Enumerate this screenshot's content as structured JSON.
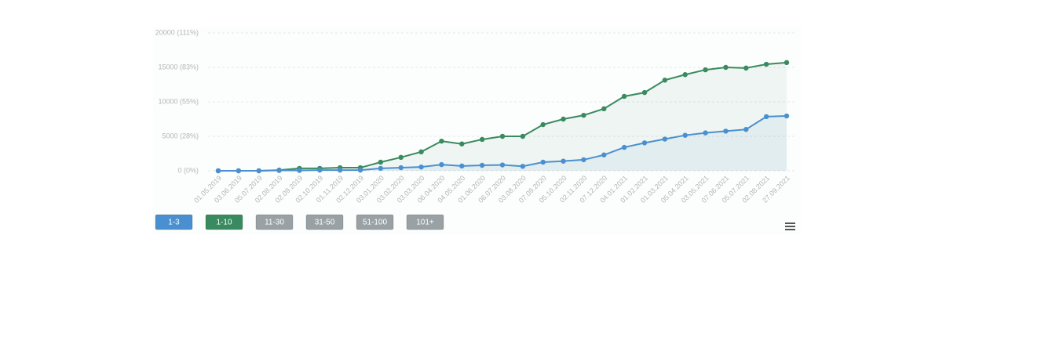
{
  "chart_data": {
    "type": "line",
    "x": [
      "01.05.2019",
      "03.06.2019",
      "05.07.2019",
      "02.08.2019",
      "02.09.2019",
      "02.10.2019",
      "01.11.2019",
      "02.12.2019",
      "03.01.2020",
      "03.02.2020",
      "03.03.2020",
      "06.04.2020",
      "04.05.2020",
      "01.06.2020",
      "06.07.2020",
      "03.08.2020",
      "07.09.2020",
      "05.10.2020",
      "02.11.2020",
      "07.12.2020",
      "04.01.2021",
      "01.02.2021",
      "01.03.2021",
      "05.04.2021",
      "03.05.2021",
      "07.06.2021",
      "05.07.2021",
      "02.08.2021",
      "27.09.2021"
    ],
    "series": [
      {
        "name": "1-3",
        "color": "#4a90d0",
        "values": [
          0,
          0,
          0,
          50,
          50,
          100,
          100,
          100,
          350,
          450,
          550,
          900,
          700,
          800,
          850,
          650,
          1250,
          1400,
          1600,
          2300,
          3400,
          4050,
          4600,
          5150,
          5500,
          5750,
          6000,
          7850,
          7950
        ]
      },
      {
        "name": "1-10",
        "color": "#3a8a60",
        "values": [
          0,
          0,
          0,
          100,
          350,
          350,
          450,
          450,
          1250,
          1950,
          2750,
          4300,
          3900,
          4550,
          5000,
          5000,
          6700,
          7500,
          8050,
          9000,
          10800,
          11350,
          13150,
          13950,
          14650,
          15000,
          14900,
          15450,
          15700
        ]
      }
    ],
    "hidden_series": [
      "11-30",
      "31-50",
      "51-100",
      "101+"
    ],
    "ylim": [
      0,
      20000
    ],
    "yticks": [
      {
        "value": 0,
        "label": "0 (0%)"
      },
      {
        "value": 5000,
        "label": "5000 (28%)"
      },
      {
        "value": 10000,
        "label": "10000 (55%)"
      },
      {
        "value": 15000,
        "label": "15000 (83%)"
      },
      {
        "value": 20000,
        "label": "20000 (111%)"
      }
    ],
    "grid": true
  }
}
